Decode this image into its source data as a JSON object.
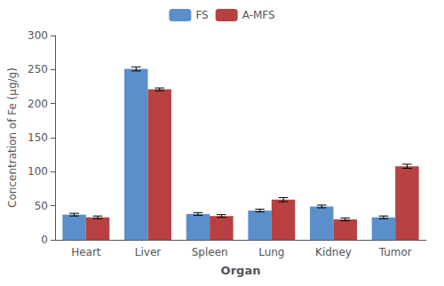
{
  "chart_data": {
    "type": "bar",
    "xlabel": "Organ",
    "ylabel": "Concentration of Fe (μg/g)",
    "categories": [
      "Heart",
      "Liver",
      "Spleen",
      "Lung",
      "Kidney",
      "Tumor"
    ],
    "series": [
      {
        "name": "FS",
        "color": "#5B8FCC",
        "values": [
          37,
          251,
          38,
          43,
          49,
          33
        ],
        "errors": [
          2,
          3,
          2,
          2,
          2,
          2
        ]
      },
      {
        "name": "A-MFS",
        "color": "#B84040",
        "values": [
          33,
          221,
          35,
          59,
          30,
          108
        ],
        "errors": [
          2,
          2,
          2,
          3,
          2,
          3
        ]
      }
    ],
    "ylim": [
      0,
      300
    ],
    "yticks": [
      0,
      50,
      100,
      150,
      200,
      250,
      300
    ],
    "grid": false,
    "legend": "top"
  }
}
